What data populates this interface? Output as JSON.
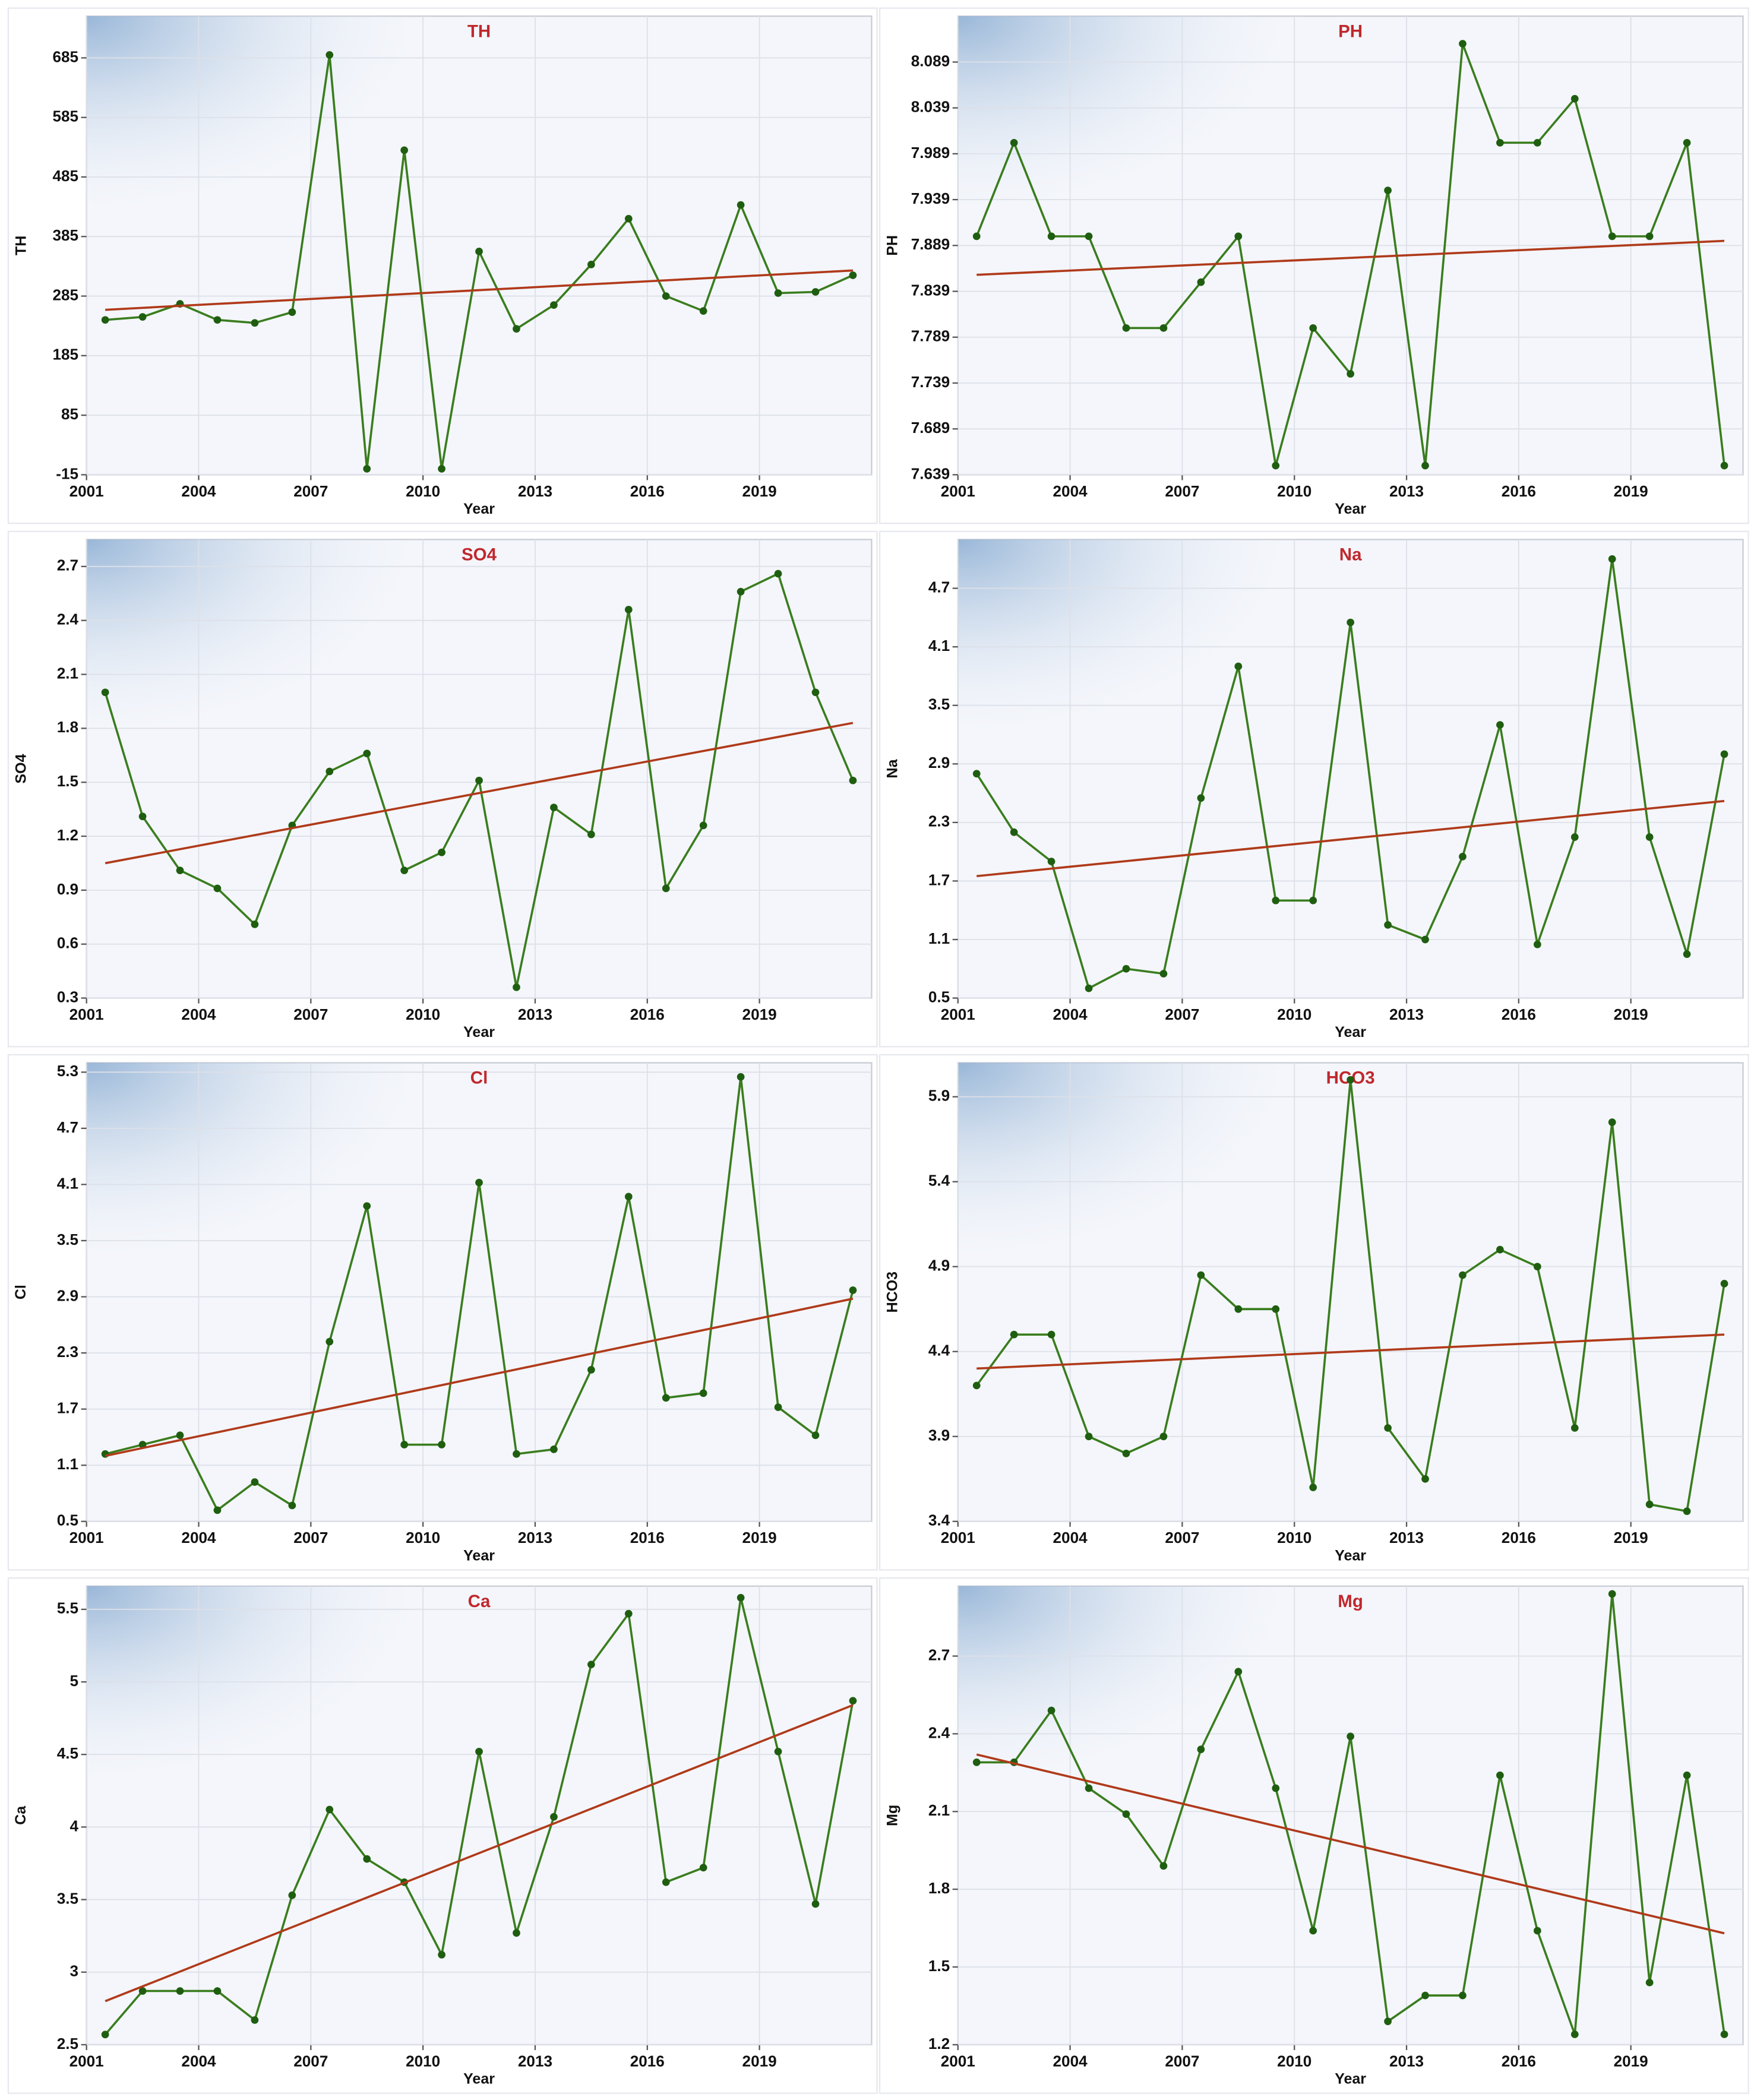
{
  "chart_data": [
    {
      "type": "line",
      "title": "TH",
      "xlabel": "Year",
      "ylabel": "TH",
      "x": [
        2001.5,
        2002.5,
        2003.5,
        2004.5,
        2005.5,
        2006.5,
        2007.5,
        2008.5,
        2009.5,
        2010.5,
        2011.5,
        2012.5,
        2013.5,
        2014.5,
        2015.5,
        2016.5,
        2017.5,
        2018.5,
        2019.5,
        2020.5,
        2021.5
      ],
      "xlim": [
        2001,
        2022
      ],
      "xticks": [
        2001,
        2004,
        2007,
        2010,
        2013,
        2016,
        2019
      ],
      "ylim": [
        -15,
        755
      ],
      "yticks": [
        -15,
        85,
        185,
        285,
        385,
        485,
        585,
        685
      ],
      "grid": true,
      "series": [
        {
          "color": "#3a7d1e",
          "values": [
            245,
            250,
            272,
            245,
            240,
            258,
            690,
            -5,
            530,
            -5,
            360,
            230,
            270,
            338,
            415,
            285,
            260,
            438,
            290,
            292,
            320
          ]
        },
        {
          "color": "#b03a1a",
          "x": [
            2001.5,
            2021.5
          ],
          "values": [
            262,
            328
          ]
        }
      ]
    },
    {
      "type": "line",
      "title": "PH",
      "xlabel": "Year",
      "ylabel": "PH",
      "x": [
        2001.5,
        2002.5,
        2003.5,
        2004.5,
        2005.5,
        2006.5,
        2007.5,
        2008.5,
        2009.5,
        2010.5,
        2011.5,
        2012.5,
        2013.5,
        2014.5,
        2015.5,
        2016.5,
        2017.5,
        2018.5,
        2019.5,
        2020.5,
        2021.5
      ],
      "xlim": [
        2001,
        2022
      ],
      "xticks": [
        2001,
        2004,
        2007,
        2010,
        2013,
        2016,
        2019
      ],
      "ylim": [
        7.639,
        8.139
      ],
      "yticks": [
        7.639,
        7.689,
        7.739,
        7.789,
        7.839,
        7.889,
        7.939,
        7.989,
        8.039,
        8.089
      ],
      "grid": true,
      "series": [
        {
          "color": "#3a7d1e",
          "values": [
            7.899,
            8.001,
            7.899,
            7.899,
            7.799,
            7.799,
            7.849,
            7.899,
            7.649,
            7.799,
            7.749,
            7.949,
            7.649,
            8.109,
            8.001,
            8.001,
            8.049,
            7.899,
            7.899,
            8.001,
            7.649
          ]
        },
        {
          "color": "#b03a1a",
          "x": [
            2001.5,
            2021.5
          ],
          "values": [
            7.857,
            7.894
          ]
        }
      ]
    },
    {
      "type": "line",
      "title": "SO4",
      "xlabel": "Year",
      "ylabel": "SO4",
      "x": [
        2001.5,
        2002.5,
        2003.5,
        2004.5,
        2005.5,
        2006.5,
        2007.5,
        2008.5,
        2009.5,
        2010.5,
        2011.5,
        2012.5,
        2013.5,
        2014.5,
        2015.5,
        2016.5,
        2017.5,
        2018.5,
        2019.5,
        2020.5,
        2021.5
      ],
      "xlim": [
        2001,
        2022
      ],
      "xticks": [
        2001,
        2004,
        2007,
        2010,
        2013,
        2016,
        2019
      ],
      "ylim": [
        0.3,
        2.85
      ],
      "yticks": [
        0.3,
        0.6,
        0.9,
        1.2,
        1.5,
        1.8,
        2.1,
        2.4,
        2.7
      ],
      "grid": true,
      "series": [
        {
          "color": "#3a7d1e",
          "values": [
            2.0,
            1.31,
            1.01,
            0.91,
            0.71,
            1.26,
            1.56,
            1.66,
            1.01,
            1.11,
            1.51,
            0.36,
            1.36,
            1.21,
            2.46,
            0.91,
            1.26,
            2.56,
            2.66,
            2.0,
            1.51
          ]
        },
        {
          "color": "#b03a1a",
          "x": [
            2001.5,
            2021.5
          ],
          "values": [
            1.05,
            1.83
          ]
        }
      ]
    },
    {
      "type": "line",
      "title": "Na",
      "xlabel": "Year",
      "ylabel": "Na",
      "x": [
        2001.5,
        2002.5,
        2003.5,
        2004.5,
        2005.5,
        2006.5,
        2007.5,
        2008.5,
        2009.5,
        2010.5,
        2011.5,
        2012.5,
        2013.5,
        2014.5,
        2015.5,
        2016.5,
        2017.5,
        2018.5,
        2019.5,
        2020.5,
        2021.5
      ],
      "xlim": [
        2001,
        2022
      ],
      "xticks": [
        2001,
        2004,
        2007,
        2010,
        2013,
        2016,
        2019
      ],
      "ylim": [
        0.5,
        5.2
      ],
      "yticks": [
        0.5,
        1.1,
        1.7,
        2.3,
        2.9,
        3.5,
        4.1,
        4.7
      ],
      "grid": true,
      "series": [
        {
          "color": "#3a7d1e",
          "values": [
            2.8,
            2.2,
            1.9,
            0.6,
            0.8,
            0.75,
            2.55,
            3.9,
            1.5,
            1.5,
            4.35,
            1.25,
            1.1,
            1.95,
            3.3,
            1.05,
            2.15,
            5.0,
            2.15,
            0.95,
            3.0
          ]
        },
        {
          "color": "#b03a1a",
          "x": [
            2001.5,
            2021.5
          ],
          "values": [
            1.75,
            2.52
          ]
        }
      ]
    },
    {
      "type": "line",
      "title": "Cl",
      "xlabel": "Year",
      "ylabel": "Cl",
      "x": [
        2001.5,
        2002.5,
        2003.5,
        2004.5,
        2005.5,
        2006.5,
        2007.5,
        2008.5,
        2009.5,
        2010.5,
        2011.5,
        2012.5,
        2013.5,
        2014.5,
        2015.5,
        2016.5,
        2017.5,
        2018.5,
        2019.5,
        2020.5,
        2021.5
      ],
      "xlim": [
        2001,
        2022
      ],
      "xticks": [
        2001,
        2004,
        2007,
        2010,
        2013,
        2016,
        2019
      ],
      "ylim": [
        0.5,
        5.4
      ],
      "yticks": [
        0.5,
        1.1,
        1.7,
        2.3,
        2.9,
        3.5,
        4.1,
        4.7,
        5.3
      ],
      "grid": true,
      "series": [
        {
          "color": "#3a7d1e",
          "values": [
            1.22,
            1.32,
            1.42,
            0.62,
            0.92,
            0.67,
            2.42,
            3.87,
            1.32,
            1.32,
            4.12,
            1.22,
            1.27,
            2.12,
            3.97,
            1.82,
            1.87,
            5.25,
            1.72,
            1.42,
            2.97
          ]
        },
        {
          "color": "#b03a1a",
          "x": [
            2001.5,
            2021.5
          ],
          "values": [
            1.2,
            2.88
          ]
        }
      ]
    },
    {
      "type": "line",
      "title": "HCO3",
      "xlabel": "Year",
      "ylabel": "HCO3",
      "x": [
        2001.5,
        2002.5,
        2003.5,
        2004.5,
        2005.5,
        2006.5,
        2007.5,
        2008.5,
        2009.5,
        2010.5,
        2011.5,
        2012.5,
        2013.5,
        2014.5,
        2015.5,
        2016.5,
        2017.5,
        2018.5,
        2019.5,
        2020.5,
        2021.5
      ],
      "xlim": [
        2001,
        2022
      ],
      "xticks": [
        2001,
        2004,
        2007,
        2010,
        2013,
        2016,
        2019
      ],
      "ylim": [
        3.4,
        6.1
      ],
      "yticks": [
        3.4,
        3.9,
        4.4,
        4.9,
        5.4,
        5.9
      ],
      "grid": true,
      "series": [
        {
          "color": "#3a7d1e",
          "values": [
            4.2,
            4.5,
            4.5,
            3.9,
            3.8,
            3.9,
            4.85,
            4.65,
            4.65,
            3.6,
            6.0,
            3.95,
            3.65,
            4.85,
            5.0,
            4.9,
            3.95,
            5.75,
            3.5,
            3.46,
            4.8
          ]
        },
        {
          "color": "#b03a1a",
          "x": [
            2001.5,
            2021.5
          ],
          "values": [
            4.3,
            4.5
          ]
        }
      ]
    },
    {
      "type": "line",
      "title": "Ca",
      "xlabel": "Year",
      "ylabel": "Ca",
      "x": [
        2001.5,
        2002.5,
        2003.5,
        2004.5,
        2005.5,
        2006.5,
        2007.5,
        2008.5,
        2009.5,
        2010.5,
        2011.5,
        2012.5,
        2013.5,
        2014.5,
        2015.5,
        2016.5,
        2017.5,
        2018.5,
        2019.5,
        2020.5,
        2021.5
      ],
      "xlim": [
        2001,
        2022
      ],
      "xticks": [
        2001,
        2004,
        2007,
        2010,
        2013,
        2016,
        2019
      ],
      "ylim": [
        2.5,
        5.66
      ],
      "yticks": [
        2.5,
        3.0,
        3.5,
        4.0,
        4.5,
        5.0,
        5.5
      ],
      "grid": true,
      "series": [
        {
          "color": "#3a7d1e",
          "values": [
            2.57,
            2.87,
            2.87,
            2.87,
            2.67,
            3.53,
            4.12,
            3.78,
            3.62,
            3.12,
            4.52,
            3.27,
            4.07,
            5.12,
            5.47,
            3.62,
            3.72,
            5.58,
            4.52,
            3.47,
            4.87
          ]
        },
        {
          "color": "#b03a1a",
          "x": [
            2001.5,
            2021.5
          ],
          "values": [
            2.8,
            4.84
          ]
        }
      ]
    },
    {
      "type": "line",
      "title": "Mg",
      "xlabel": "Year",
      "ylabel": "Mg",
      "x": [
        2001.5,
        2002.5,
        2003.5,
        2004.5,
        2005.5,
        2006.5,
        2007.5,
        2008.5,
        2009.5,
        2010.5,
        2011.5,
        2012.5,
        2013.5,
        2014.5,
        2015.5,
        2016.5,
        2017.5,
        2018.5,
        2019.5,
        2020.5,
        2021.5
      ],
      "xlim": [
        2001,
        2022
      ],
      "xticks": [
        2001,
        2004,
        2007,
        2010,
        2013,
        2016,
        2019
      ],
      "ylim": [
        1.2,
        2.97
      ],
      "yticks": [
        1.2,
        1.5,
        1.8,
        2.1,
        2.4,
        2.7
      ],
      "grid": true,
      "series": [
        {
          "color": "#3a7d1e",
          "values": [
            2.29,
            2.29,
            2.49,
            2.19,
            2.09,
            1.89,
            2.34,
            2.64,
            2.19,
            1.64,
            2.39,
            1.29,
            1.39,
            1.39,
            2.24,
            1.64,
            1.24,
            2.94,
            1.44,
            2.24,
            1.24
          ]
        },
        {
          "color": "#b03a1a",
          "x": [
            2001.5,
            2021.5
          ],
          "values": [
            2.32,
            1.63
          ]
        }
      ]
    }
  ]
}
